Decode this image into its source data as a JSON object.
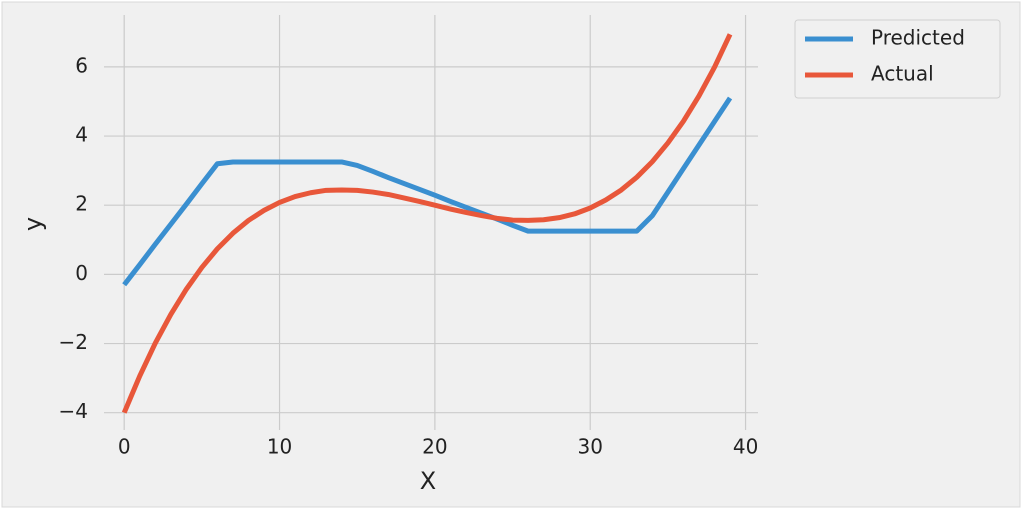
{
  "chart_data": {
    "type": "line",
    "x_label": "X",
    "y_label": "y",
    "x": [
      0,
      1,
      2,
      3,
      4,
      5,
      6,
      7,
      8,
      9,
      10,
      11,
      12,
      13,
      14,
      15,
      16,
      17,
      18,
      19,
      20,
      21,
      22,
      23,
      24,
      25,
      26,
      27,
      28,
      29,
      30,
      31,
      32,
      33,
      34,
      35,
      36,
      37,
      38,
      39
    ],
    "series": [
      {
        "name": "Predicted",
        "color": "#3a8fd0",
        "values": [
          -0.3,
          0.28,
          0.87,
          1.45,
          2.03,
          2.62,
          3.2,
          3.25,
          3.25,
          3.25,
          3.25,
          3.25,
          3.25,
          3.25,
          3.25,
          3.15,
          2.98,
          2.8,
          2.63,
          2.46,
          2.29,
          2.11,
          1.94,
          1.77,
          1.6,
          1.42,
          1.25,
          1.25,
          1.25,
          1.25,
          1.25,
          1.25,
          1.25,
          1.25,
          1.7,
          2.38,
          3.06,
          3.74,
          4.42,
          5.1
        ]
      },
      {
        "name": "Actual",
        "color": "#e8573a",
        "values": [
          -4.0,
          -2.94,
          -1.99,
          -1.16,
          -0.43,
          0.2,
          0.74,
          1.19,
          1.56,
          1.85,
          2.08,
          2.25,
          2.36,
          2.43,
          2.44,
          2.43,
          2.38,
          2.31,
          2.21,
          2.11,
          2.0,
          1.89,
          1.79,
          1.7,
          1.62,
          1.57,
          1.56,
          1.58,
          1.64,
          1.75,
          1.92,
          2.15,
          2.44,
          2.81,
          3.26,
          3.8,
          4.43,
          5.16,
          5.99,
          6.94
        ]
      }
    ],
    "xlim": [
      -1.3,
      40.8
    ],
    "xticks": [
      0,
      10,
      20,
      30,
      40
    ],
    "ylim": [
      -4.5,
      7.5
    ],
    "yticks": [
      {
        "value": -4,
        "label": "−4"
      },
      {
        "value": -2,
        "label": "−2"
      },
      0,
      2,
      4,
      6
    ],
    "grid": true,
    "legend": "outside-upper-right"
  }
}
